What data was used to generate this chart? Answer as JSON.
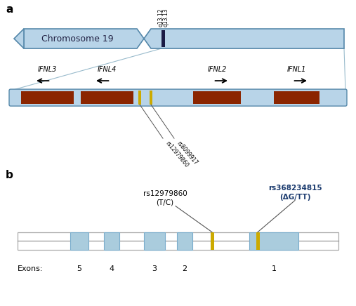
{
  "fig_width": 5.07,
  "fig_height": 4.36,
  "dpi": 100,
  "bg_color": "#ffffff",
  "panel_a_label": "a",
  "panel_b_label": "b",
  "chr19_label": "Chromosome 19",
  "chr_color": "#b8d4e8",
  "chr_edge_color": "#5588aa",
  "band_color": "#8B2500",
  "yellow_color": "#ccaa00",
  "q_labels": [
    "q13.12",
    "q13.13"
  ],
  "rs_labels_a": [
    "rs12979860",
    "rs8099917"
  ],
  "gene_names": [
    "IFNL3",
    "IFNL4",
    "IFNL2",
    "IFNL1"
  ],
  "exon_label": "Exons:",
  "exon_numbers": [
    "5",
    "4",
    "3",
    "2",
    "1"
  ],
  "rs_b1": "rs12979860",
  "rs_b1b": "(T/C)",
  "rs_b2": "rs368234815",
  "rs_b2b": "ΔG/TT",
  "exon_blue_color": "#aaccdd",
  "line_color": "#999999",
  "dark_blue_label": "#1a3a6e",
  "connect_color": "#99bbcc"
}
